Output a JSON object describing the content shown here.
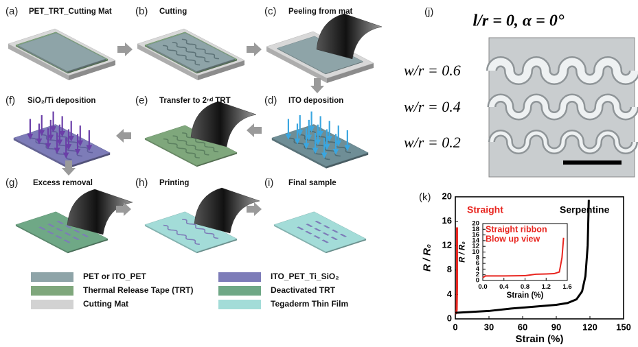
{
  "panels": [
    {
      "label": "(a)",
      "title": "PET_TRT_Cutting Mat"
    },
    {
      "label": "(b)",
      "title": "Cutting"
    },
    {
      "label": "(c)",
      "title": "Peeling from mat"
    },
    {
      "label": "(d)",
      "title": "ITO deposition"
    },
    {
      "label": "(e)",
      "title": "Transfer to 2ⁿᵈ TRT"
    },
    {
      "label": "(f)",
      "title": "SiO₂/Ti deposition"
    },
    {
      "label": "(g)",
      "title": "Excess removal"
    },
    {
      "label": "(h)",
      "title": "Printing"
    },
    {
      "label": "(i)",
      "title": "Final sample"
    }
  ],
  "legend": [
    {
      "label": "PET or ITO_PET",
      "color": "#8ea4a8"
    },
    {
      "label": "Thermal Release Tape (TRT)",
      "color": "#7fa77c"
    },
    {
      "label": "Cutting Mat",
      "color": "#d2d2d2"
    },
    {
      "label": "ITO_PET_Ti_SiO₂",
      "color": "#7d7cb8"
    },
    {
      "label": "Deactivated TRT",
      "color": "#6fa886"
    },
    {
      "label": "Tegaderm Thin Film",
      "color": "#a3dcd8"
    }
  ],
  "photo": {
    "label": "(j)",
    "title": "l/r = 0, α = 0°",
    "rows": [
      "w/r = 0.6",
      "w/r = 0.4",
      "w/r = 0.2"
    ]
  },
  "chart_label": "(k)",
  "chart_data": [
    {
      "type": "line",
      "xlabel": "Strain (%)",
      "ylabel": "R / R₀",
      "xlim": [
        0,
        150
      ],
      "xticks": [
        0,
        30,
        60,
        90,
        120,
        150
      ],
      "ylim": [
        0,
        20
      ],
      "yticks": [
        0,
        4,
        8,
        12,
        16,
        20
      ],
      "series": [
        {
          "name": "Straight",
          "color": "#e8251f",
          "x": [
            0,
            0.8,
            1.2,
            1.5,
            1.5
          ],
          "values": [
            0.8,
            1,
            1.5,
            5,
            15
          ]
        },
        {
          "name": "Serpentine",
          "color": "#000000",
          "x": [
            0,
            10,
            30,
            50,
            70,
            90,
            100,
            108,
            113,
            116,
            118,
            119
          ],
          "values": [
            1,
            1.1,
            1.3,
            1.7,
            2,
            2.3,
            2.6,
            3.2,
            4.5,
            7,
            12,
            19.5
          ]
        }
      ]
    },
    {
      "type": "line",
      "xlabel": "Strain (%)",
      "ylabel": "R / R₀",
      "annotation": [
        "Straight ribbon",
        "Blow up view"
      ],
      "xlim": [
        0,
        1.6
      ],
      "xticks": [
        {
          "value": 0,
          "label": "0.0"
        },
        0.4,
        0.8,
        1.2,
        1.6
      ],
      "ylim": [
        0,
        20
      ],
      "yticks": [
        0,
        2,
        4,
        6,
        8,
        10,
        12,
        14,
        16,
        18,
        20
      ],
      "series": [
        {
          "color": "#e8251f",
          "x": [
            0,
            0.05,
            0.4,
            0.8,
            1.0,
            1.2,
            1.35,
            1.45,
            1.5,
            1.53
          ],
          "values": [
            1,
            1.6,
            1.6,
            1.7,
            2.2,
            2.3,
            2.4,
            3,
            8,
            15
          ]
        }
      ]
    }
  ]
}
